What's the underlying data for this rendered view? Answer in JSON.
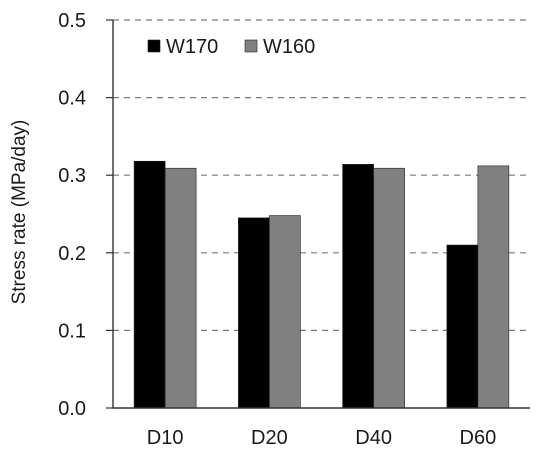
{
  "chart_data": {
    "type": "bar",
    "categories": [
      "D10",
      "D20",
      "D40",
      "D60"
    ],
    "series": [
      {
        "name": "W170",
        "values": [
          0.318,
          0.245,
          0.314,
          0.21
        ],
        "color": "#000000"
      },
      {
        "name": "W160",
        "values": [
          0.309,
          0.248,
          0.309,
          0.312
        ],
        "color": "#808080"
      }
    ],
    "ylabel": "Stress rate (MPa/day)",
    "xlabel": "",
    "ylim": [
      0.0,
      0.5
    ],
    "yticks": [
      "0.0",
      "0.1",
      "0.2",
      "0.3",
      "0.4",
      "0.5"
    ],
    "grid": "horizontal-dashed",
    "legend_position": "top-left"
  }
}
